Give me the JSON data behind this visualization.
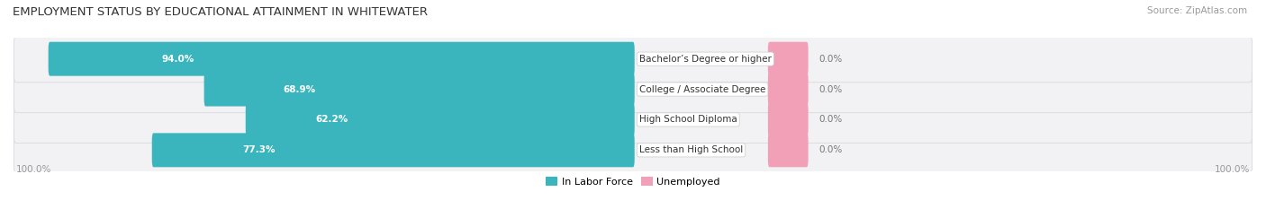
{
  "title": "EMPLOYMENT STATUS BY EDUCATIONAL ATTAINMENT IN WHITEWATER",
  "source": "Source: ZipAtlas.com",
  "categories": [
    "Less than High School",
    "High School Diploma",
    "College / Associate Degree",
    "Bachelor’s Degree or higher"
  ],
  "labor_force_pct": [
    77.3,
    62.2,
    68.9,
    94.0
  ],
  "unemployed_pct": [
    0.0,
    0.0,
    0.0,
    0.0
  ],
  "labor_force_color": "#3ab5bd",
  "unemployed_color": "#f2a0b8",
  "legend_labor_color": "#3ab5bd",
  "legend_unemployed_color": "#f2a0b8",
  "title_fontsize": 9.5,
  "source_fontsize": 7.5,
  "bar_label_fontsize": 7.5,
  "category_label_fontsize": 7.5,
  "legend_fontsize": 8,
  "axis_label_fontsize": 7.5,
  "left_axis_label": "100.0%",
  "right_axis_label": "100.0%",
  "background_color": "#ffffff",
  "row_bg_color": "#f2f2f5",
  "row_border_color": "#d8d8e0"
}
